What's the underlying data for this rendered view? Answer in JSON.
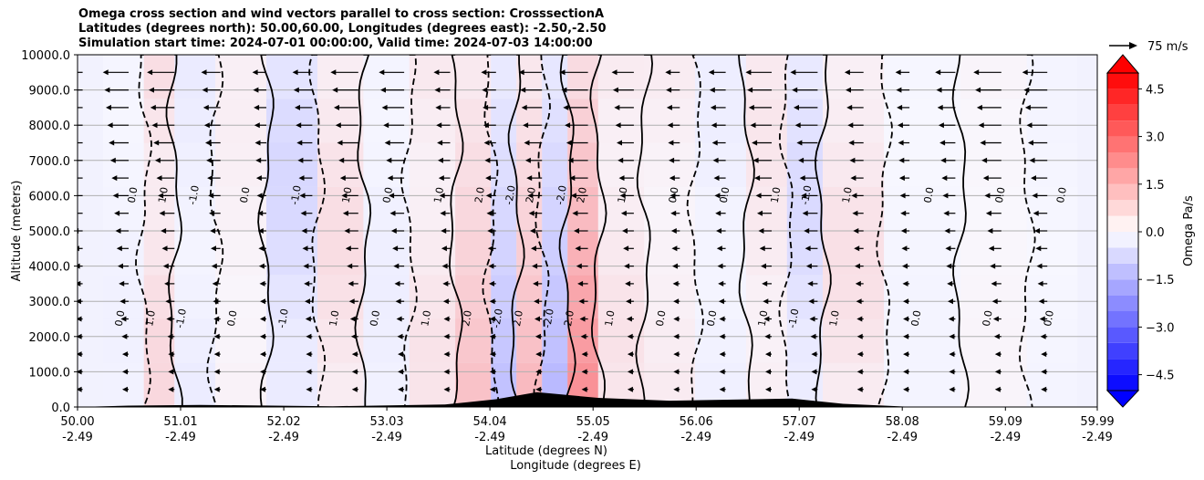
{
  "title_lines": [
    "Omega cross section and wind vectors parallel to cross section: CrosssectionA",
    "Latitudes (degrees north): 50.00,60.00, Longitudes (degrees east): -2.50,-2.50",
    "Simulation start time: 2024-07-01 00:00:00, Valid time: 2024-07-03 14:00:00"
  ],
  "chart_data": {
    "type": "heatmap",
    "title": "Omega cross section and wind vectors parallel to cross section: CrosssectionA",
    "ylabel": "Altitude (meters)",
    "xlabel_lines": [
      "Latitude (degrees N)",
      "Longitude (degrees E)"
    ],
    "ylim": [
      0,
      10000
    ],
    "y_ticks": [
      0,
      1000,
      2000,
      3000,
      4000,
      5000,
      6000,
      7000,
      8000,
      9000,
      10000
    ],
    "y_tick_labels": [
      "0.0",
      "1000.0",
      "2000.0",
      "3000.0",
      "4000.0",
      "5000.0",
      "6000.0",
      "7000.0",
      "8000.0",
      "9000.0",
      "10000.0"
    ],
    "x_ticks": [
      {
        "lat": "50.00",
        "lon": "-2.49"
      },
      {
        "lat": "51.01",
        "lon": "-2.49"
      },
      {
        "lat": "52.02",
        "lon": "-2.49"
      },
      {
        "lat": "53.03",
        "lon": "-2.49"
      },
      {
        "lat": "54.04",
        "lon": "-2.49"
      },
      {
        "lat": "55.05",
        "lon": "-2.49"
      },
      {
        "lat": "56.06",
        "lon": "-2.49"
      },
      {
        "lat": "57.07",
        "lon": "-2.49"
      },
      {
        "lat": "58.08",
        "lon": "-2.49"
      },
      {
        "lat": "59.09",
        "lon": "-2.49"
      },
      {
        "lat": "59.99",
        "lon": "-2.49"
      }
    ],
    "grid": true,
    "colorbar": {
      "label": "Omega Pa/s",
      "range": [
        -5,
        5
      ],
      "ticks": [
        4.5,
        3.0,
        1.5,
        0.0,
        -1.5,
        -3.0,
        -4.5
      ],
      "tick_labels": [
        "4.5",
        "3.0",
        "1.5",
        "0.0",
        "−1.5",
        "−3.0",
        "−4.5"
      ],
      "colormap": "bwr",
      "extend": "both"
    },
    "quiver_key": {
      "label": "75 m/s",
      "speed": 75
    },
    "contour_levels": [
      -2.0,
      -1.0,
      0.0,
      1.0,
      2.0
    ],
    "omega_columns": [
      {
        "lat": 50.5,
        "omega": -0.3
      },
      {
        "lat": 50.8,
        "omega": 1.2
      },
      {
        "lat": 51.1,
        "omega": -0.5
      },
      {
        "lat": 51.6,
        "omega": 0.4
      },
      {
        "lat": 52.1,
        "omega": -1.2
      },
      {
        "lat": 52.6,
        "omega": 1.0
      },
      {
        "lat": 53.0,
        "omega": -0.4
      },
      {
        "lat": 53.5,
        "omega": 0.8
      },
      {
        "lat": 53.9,
        "omega": 1.6
      },
      {
        "lat": 54.2,
        "omega": -1.6
      },
      {
        "lat": 54.4,
        "omega": 1.8
      },
      {
        "lat": 54.7,
        "omega": -1.8
      },
      {
        "lat": 54.9,
        "omega": 3.0
      },
      {
        "lat": 55.3,
        "omega": 0.8
      },
      {
        "lat": 55.8,
        "omega": 0.5
      },
      {
        "lat": 56.3,
        "omega": -0.4
      },
      {
        "lat": 56.8,
        "omega": 0.7
      },
      {
        "lat": 57.1,
        "omega": -1.1
      },
      {
        "lat": 57.5,
        "omega": 0.9
      },
      {
        "lat": 58.3,
        "omega": -0.2
      },
      {
        "lat": 59.0,
        "omega": 0.2
      },
      {
        "lat": 59.6,
        "omega": -0.2
      }
    ],
    "terrain": [
      {
        "lat": 50.5,
        "height": 40
      },
      {
        "lat": 51.2,
        "height": 60
      },
      {
        "lat": 52.5,
        "height": 20
      },
      {
        "lat": 53.6,
        "height": 70
      },
      {
        "lat": 54.1,
        "height": 220
      },
      {
        "lat": 54.5,
        "height": 420
      },
      {
        "lat": 55.1,
        "height": 260
      },
      {
        "lat": 55.8,
        "height": 180
      },
      {
        "lat": 57.0,
        "height": 240
      },
      {
        "lat": 57.5,
        "height": 90
      },
      {
        "lat": 58.2,
        "height": 0
      }
    ]
  }
}
